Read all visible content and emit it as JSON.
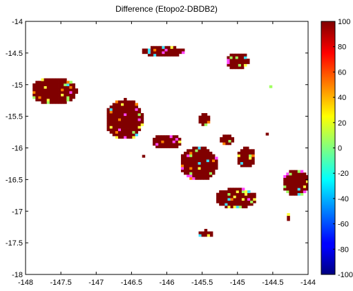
{
  "chart_data": {
    "type": "heatmap",
    "title": "Difference (Etopo2-DBDB2)",
    "xlabel": "",
    "ylabel": "",
    "xlim": [
      -148,
      -144
    ],
    "ylim": [
      -18,
      -14
    ],
    "x_ticks": [
      -148,
      -147.5,
      -147,
      -146.5,
      -146,
      -145.5,
      -145,
      -144.5,
      -144
    ],
    "x_tick_labels": [
      "-148",
      "-147.5",
      "-147",
      "-146.5",
      "-146",
      "-145.5",
      "-145",
      "-144.5",
      "-144"
    ],
    "y_ticks": [
      -14,
      -14.5,
      -15,
      -15.5,
      -16,
      -16.5,
      -17,
      -17.5,
      -18
    ],
    "y_tick_labels": [
      "-14",
      "-14.5",
      "-15",
      "-15.5",
      "-16",
      "-16.5",
      "-17",
      "-17.5",
      "-18"
    ],
    "grid": false,
    "colorbar": {
      "colormap": "jet",
      "range": [
        -100,
        100
      ],
      "ticks": [
        100,
        80,
        60,
        40,
        20,
        0,
        -20,
        -40,
        -60,
        -80,
        -100
      ],
      "tick_labels": [
        "100",
        "80",
        "60",
        "40",
        "20",
        "0",
        "-20",
        "-40",
        "-60",
        "-80",
        "-100"
      ]
    },
    "dominant_value": 100,
    "regions": [
      {
        "lon": [
          -147.9,
          -147.3
        ],
        "lat": [
          -15.3,
          -14.9
        ]
      },
      {
        "lon": [
          -146.85,
          -146.35
        ],
        "lat": [
          -15.85,
          -15.25
        ]
      },
      {
        "lon": [
          -146.2,
          -145.8
        ],
        "lat": [
          -16.0,
          -15.8
        ]
      },
      {
        "lon": [
          -145.8,
          -145.3
        ],
        "lat": [
          -16.5,
          -16.0
        ]
      },
      {
        "lon": [
          -145.55,
          -145.4
        ],
        "lat": [
          -15.65,
          -15.45
        ]
      },
      {
        "lon": [
          -145.25,
          -145.05
        ],
        "lat": [
          -15.95,
          -15.8
        ]
      },
      {
        "lon": [
          -145.0,
          -144.75
        ],
        "lat": [
          -16.3,
          -16.0
        ]
      },
      {
        "lon": [
          -144.35,
          -144.0
        ],
        "lat": [
          -16.75,
          -16.35
        ]
      },
      {
        "lon": [
          -145.3,
          -144.75
        ],
        "lat": [
          -16.95,
          -16.65
        ]
      },
      {
        "lon": [
          -145.55,
          -145.35
        ],
        "lat": [
          -17.4,
          -17.3
        ]
      },
      {
        "lon": [
          -146.35,
          -145.75
        ],
        "lat": [
          -14.55,
          -14.4
        ]
      },
      {
        "lon": [
          -145.15,
          -144.85
        ],
        "lat": [
          -14.75,
          -14.5
        ]
      },
      {
        "lon": [
          -146.35,
          -146.3
        ],
        "lat": [
          -16.15,
          -16.1
        ]
      },
      {
        "lon": [
          -144.3,
          -144.25
        ],
        "lat": [
          -17.15,
          -17.05
        ]
      },
      {
        "lon": [
          -144.55,
          -144.5
        ],
        "lat": [
          -15.05,
          -15.0
        ]
      },
      {
        "lon": [
          -144.6,
          -144.55
        ],
        "lat": [
          -15.8,
          -15.75
        ]
      }
    ]
  }
}
